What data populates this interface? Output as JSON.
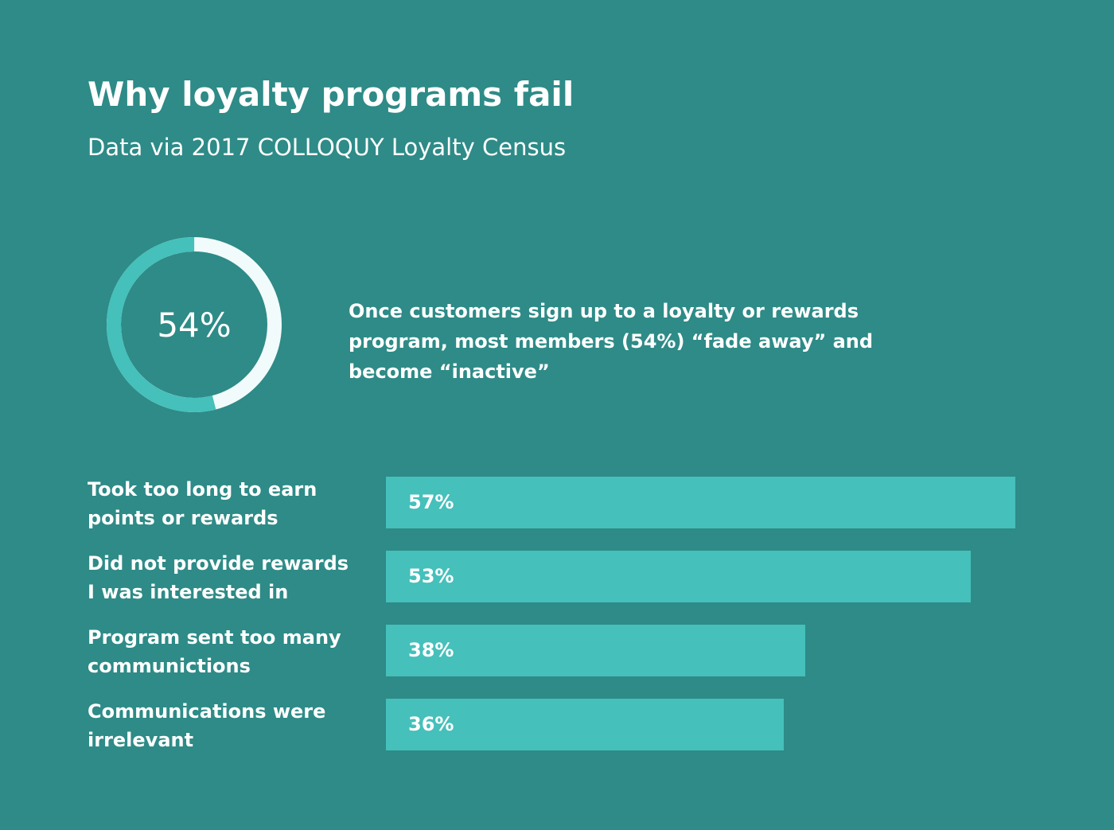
{
  "title": "Why loyalty programs fail",
  "subtitle": "Data via 2017 COLLOQUY Loyalty Census",
  "donut": {
    "value": 54,
    "label": "54%",
    "colors": {
      "filled": "#45c0bb",
      "remainder": "#f2fbfb"
    }
  },
  "headline": "Once customers sign up to a loyalty or rewards program, most members (54%) “fade away” and become “inactive”",
  "colors": {
    "background": "#2e8b87",
    "bar": "#45c0bb",
    "text": "#ffffff"
  },
  "chart_data": {
    "type": "bar",
    "orientation": "horizontal",
    "categories": [
      "Took too long to earn points or rewards",
      "Did not provide rewards I was interested in",
      "Program sent too many communictions",
      "Communications were irrelevant"
    ],
    "values": [
      57,
      53,
      38,
      36
    ],
    "value_labels": [
      "57%",
      "53%",
      "38%",
      "36%"
    ],
    "xlim": [
      0,
      57
    ],
    "grid": false
  }
}
